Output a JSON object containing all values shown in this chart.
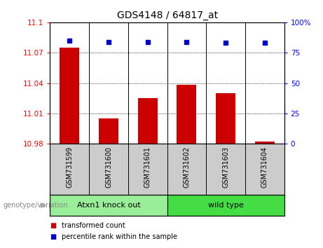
{
  "title": "GDS4148 / 64817_at",
  "samples": [
    "GSM731599",
    "GSM731600",
    "GSM731601",
    "GSM731602",
    "GSM731603",
    "GSM731604"
  ],
  "bar_values": [
    11.075,
    11.005,
    11.025,
    11.038,
    11.03,
    10.982
  ],
  "percentile_values": [
    85,
    84,
    84,
    84,
    83,
    83
  ],
  "ylim_left": [
    10.98,
    11.1
  ],
  "ylim_right": [
    0,
    100
  ],
  "yticks_left": [
    10.98,
    11.01,
    11.04,
    11.07,
    11.1
  ],
  "yticks_right": [
    0,
    25,
    50,
    75,
    100
  ],
  "ytick_labels_left": [
    "10.98",
    "11.01",
    "11.04",
    "11.07",
    "11.1"
  ],
  "ytick_labels_right": [
    "0",
    "25",
    "50",
    "75",
    "100%"
  ],
  "bar_color": "#cc0000",
  "dot_color": "#0000cc",
  "group1_label": "Atxn1 knock out",
  "group2_label": "wild type",
  "group1_color": "#99ee99",
  "group2_color": "#44dd44",
  "group1_indices": [
    0,
    1,
    2
  ],
  "group2_indices": [
    3,
    4,
    5
  ],
  "xlabel_area_color": "#cccccc",
  "legend_red_label": "transformed count",
  "legend_blue_label": "percentile rank within the sample",
  "genotype_label": "genotype/variation",
  "baseline": 10.98,
  "bar_width": 0.5
}
